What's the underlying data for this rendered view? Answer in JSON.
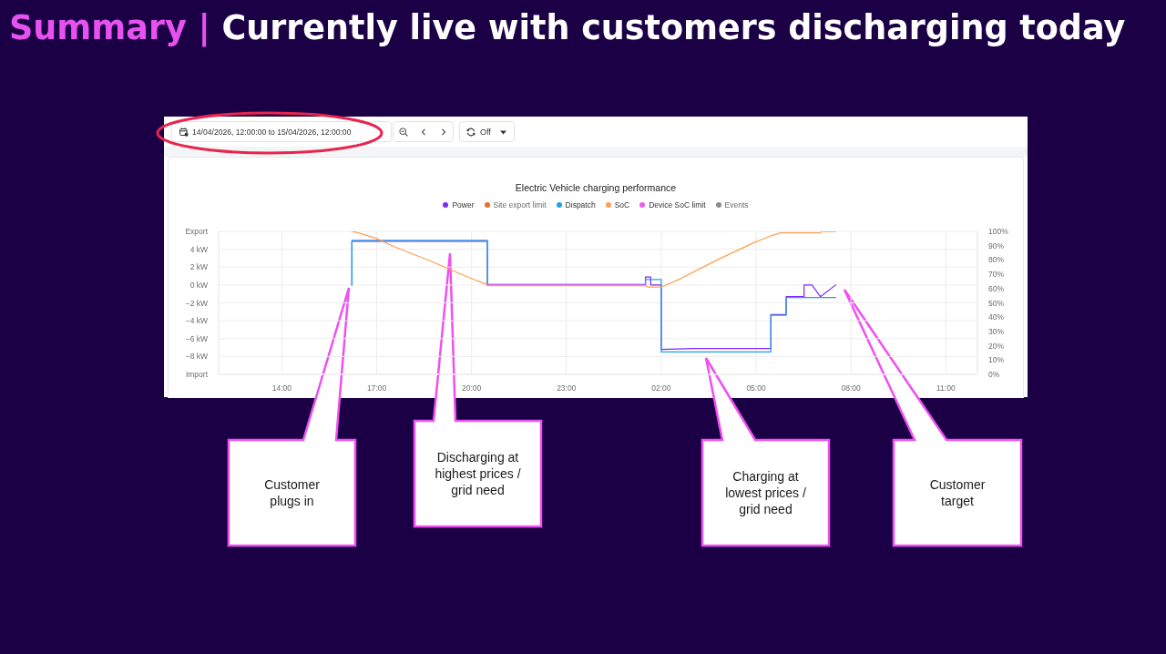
{
  "chart_data": {
    "type": "line",
    "title": "Summary | Currently live with customers discharging today",
    "subtitle": "Electric Vehicle charging performance",
    "xlim": [
      "2026-04-14T12:00",
      "2026-04-15T12:00"
    ],
    "xticks": [
      {
        "value": "2026-04-14T14:00",
        "label": "14:00"
      },
      {
        "value": "2026-04-14T17:00",
        "label": "17:00"
      },
      {
        "value": "2026-04-14T20:00",
        "label": "20:00"
      },
      {
        "value": "2026-04-14T23:00",
        "label": "23:00"
      },
      {
        "value": "2026-04-15T02:00",
        "label": "02:00"
      },
      {
        "value": "2026-04-15T05:00",
        "label": "05:00"
      },
      {
        "value": "2026-04-15T08:00",
        "label": "08:00"
      },
      {
        "value": "2026-04-15T11:00",
        "label": "11:00"
      }
    ],
    "ylim": [
      -10,
      6
    ],
    "yticks": [
      {
        "value": -10,
        "label": "Import"
      },
      {
        "value": -8,
        "label": "−8 kW"
      },
      {
        "value": -6,
        "label": "−6 kW"
      },
      {
        "value": -4,
        "label": "−4 kW"
      },
      {
        "value": -2,
        "label": "−2 kW"
      },
      {
        "value": 0,
        "label": "0 kW"
      },
      {
        "value": 2,
        "label": "2 kW"
      },
      {
        "value": 4,
        "label": "4 kW"
      },
      {
        "value": 6,
        "label": "Export"
      }
    ],
    "y2lim": [
      0,
      100
    ],
    "y2ticks": [
      {
        "value": 0,
        "label": "0%"
      },
      {
        "value": 10,
        "label": "10%"
      },
      {
        "value": 20,
        "label": "20%"
      },
      {
        "value": 30,
        "label": "30%"
      },
      {
        "value": 40,
        "label": "40%"
      },
      {
        "value": 50,
        "label": "50%"
      },
      {
        "value": 60,
        "label": "60%"
      },
      {
        "value": 70,
        "label": "70%"
      },
      {
        "value": 80,
        "label": "80%"
      },
      {
        "value": 90,
        "label": "90%"
      },
      {
        "value": 100,
        "label": "100%"
      }
    ],
    "grid": true,
    "legend": "top",
    "series": [
      {
        "name": "Power",
        "color": "#7b2cf5",
        "x": [
          "2026-04-14T16:13",
          "2026-04-14T16:13",
          "2026-04-14T20:30",
          "2026-04-14T20:30",
          "2026-04-15T01:30",
          "2026-04-15T01:30",
          "2026-04-15T01:40",
          "2026-04-15T01:40",
          "2026-04-15T02:00",
          "2026-04-15T02:00",
          "2026-04-15T03:00",
          "2026-04-15T05:28",
          "2026-04-15T05:28",
          "2026-04-15T05:57",
          "2026-04-15T05:57",
          "2026-04-15T06:31",
          "2026-04-15T06:31",
          "2026-04-15T06:46",
          "2026-04-15T07:02",
          "2026-04-15T07:31"
        ],
        "values": [
          0,
          4.9,
          4.9,
          0,
          0,
          0.9,
          0.9,
          0,
          0,
          -7.2,
          -7.1,
          -7.1,
          -3.3,
          -3.3,
          -1.3,
          -1.3,
          0,
          0,
          -1.3,
          0
        ]
      },
      {
        "name": "Site export limit",
        "color": "#f26b2a"
      },
      {
        "name": "Dispatch",
        "type": "step",
        "color": "#22a0e6",
        "x": [
          "2026-04-14T16:13",
          "2026-04-14T16:13",
          "2026-04-14T20:30",
          "2026-04-15T01:30",
          "2026-04-15T02:00",
          "2026-04-15T05:28",
          "2026-04-15T05:57",
          "2026-04-15T07:31"
        ],
        "values": [
          0,
          5,
          0,
          0.6,
          -7.5,
          -3.4,
          -1.4,
          -1.4
        ]
      },
      {
        "name": "SoC",
        "axis": "y2",
        "color": "#ff9f50",
        "x": [
          "2026-04-14T16:13",
          "2026-04-14T16:25",
          "2026-04-14T17:00",
          "2026-04-14T17:35",
          "2026-04-14T18:44",
          "2026-04-14T19:53",
          "2026-04-14T20:28",
          "2026-04-14T20:30",
          "2026-04-15T01:30",
          "2026-04-15T01:35",
          "2026-04-15T02:00",
          "2026-04-15T02:37",
          "2026-04-15T03:46",
          "2026-04-15T04:55",
          "2026-04-15T05:29",
          "2026-04-15T05:47",
          "2026-04-15T07:02",
          "2026-04-15T07:05",
          "2026-04-15T07:31"
        ],
        "values": [
          100,
          99,
          95,
          89,
          79,
          68,
          63,
          62,
          62,
          61,
          61,
          67,
          80,
          92,
          97,
          99,
          99,
          100,
          100
        ]
      },
      {
        "name": "Device SoC limit",
        "axis": "y2",
        "color": "#ee5cf0",
        "x": [
          "2026-04-14T20:30",
          "2026-04-15T01:28"
        ],
        "values": [
          63,
          63
        ]
      },
      {
        "name": "Events",
        "color": "#8c8c8c"
      }
    ],
    "annotations": [
      "14/04/2026, 12:00:00 to 15/04/2026, 12:00:00",
      "Off",
      "Customer plugs in",
      "Discharging at highest prices / grid need",
      "Charging at lowest prices / grid need",
      "Customer target"
    ]
  }
}
